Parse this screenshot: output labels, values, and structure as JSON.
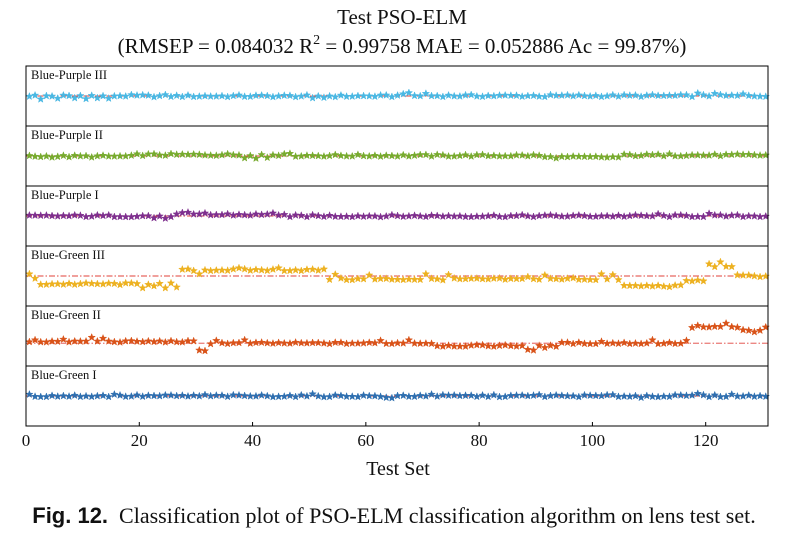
{
  "chart_data": {
    "type": "scatter",
    "title": "Test PSO-ELM",
    "subtitle_prefix": "(RMSEP = 0.084032 R",
    "subtitle_sup": "2",
    "subtitle_suffix": " = 0.99758 MAE = 0.052886 Ac = 99.87%)",
    "xlabel": "Test Set",
    "xlim": [
      0,
      131
    ],
    "x_ticks": [
      "0",
      "20",
      "40",
      "60",
      "80",
      "100",
      "120"
    ],
    "x_tick_values": [
      0,
      20,
      40,
      60,
      80,
      100,
      120
    ],
    "n_samples": 131,
    "panels": [
      {
        "name": "Blue-Purple III",
        "color": "#4ab8e3",
        "class_value": 1,
        "segments": [
          [
            0,
            21,
            0.005
          ],
          [
            21,
            65,
            -0.003
          ],
          [
            65,
            131,
            0.005
          ]
        ],
        "outliers": [
          [
            2,
            -0.08
          ],
          [
            5,
            -0.06
          ],
          [
            8,
            -0.05
          ],
          [
            10,
            -0.07
          ],
          [
            12,
            -0.05
          ],
          [
            14,
            -0.06
          ],
          [
            24,
            0.03
          ],
          [
            50,
            -0.05
          ],
          [
            52,
            -0.04
          ],
          [
            66,
            0.05
          ],
          [
            67,
            0.08
          ],
          [
            70,
            0.06
          ],
          [
            91,
            -0.02
          ],
          [
            118,
            0.07
          ],
          [
            121,
            0.06
          ],
          [
            126,
            0.05
          ]
        ]
      },
      {
        "name": "Blue-Purple II",
        "color": "#77ab2e",
        "class_value": 2,
        "segments": [
          [
            0,
            19,
            -0.01
          ],
          [
            19,
            46,
            0.03
          ],
          [
            46,
            91,
            0.01
          ],
          [
            91,
            105,
            -0.03
          ],
          [
            105,
            131,
            0.02
          ]
        ],
        "outliers": [
          [
            38,
            -0.05
          ],
          [
            40,
            -0.06
          ],
          [
            42,
            -0.04
          ],
          [
            45,
            0.05
          ],
          [
            46,
            0.06
          ],
          [
            113,
            0.05
          ],
          [
            121,
            0.04
          ]
        ]
      },
      {
        "name": "Blue-Purple I",
        "color": "#7e2f8e",
        "class_value": 3,
        "segments": [
          [
            0,
            26,
            0.0
          ],
          [
            26,
            47,
            0.03
          ],
          [
            47,
            131,
            0.0
          ]
        ],
        "outliers": [
          [
            22,
            -0.05
          ],
          [
            24,
            -0.06
          ],
          [
            27,
            0.08
          ],
          [
            28,
            0.09
          ],
          [
            31,
            0.07
          ],
          [
            35,
            0.05
          ],
          [
            43,
            0.07
          ],
          [
            46,
            -0.02
          ],
          [
            111,
            0.05
          ],
          [
            120,
            0.06
          ]
        ]
      },
      {
        "name": "Blue-Green III",
        "color": "#edb120",
        "class_value": 4,
        "segments": [
          [
            0,
            27,
            -0.2
          ],
          [
            27,
            53,
            0.15
          ],
          [
            53,
            105,
            -0.08
          ],
          [
            105,
            116,
            -0.25
          ],
          [
            116,
            120,
            -0.12
          ],
          [
            120,
            125,
            0.25
          ],
          [
            125,
            131,
            0.0
          ]
        ],
        "outliers": [
          [
            0,
            0.05
          ],
          [
            1,
            -0.06
          ],
          [
            20,
            -0.3
          ],
          [
            22,
            -0.25
          ],
          [
            24,
            -0.3
          ],
          [
            26,
            -0.28
          ],
          [
            30,
            0.05
          ],
          [
            37,
            0.2
          ],
          [
            44,
            0.2
          ],
          [
            54,
            0.04
          ],
          [
            60,
            0.02
          ],
          [
            70,
            0.05
          ],
          [
            74,
            0.03
          ],
          [
            88,
            -0.02
          ],
          [
            91,
            0.02
          ],
          [
            96,
            -0.05
          ],
          [
            101,
            0.05
          ],
          [
            103,
            0.03
          ],
          [
            120,
            0.3
          ],
          [
            122,
            0.35
          ]
        ]
      },
      {
        "name": "Blue-Green II",
        "color": "#d95319",
        "class_value": 5,
        "segments": [
          [
            0,
            30,
            0.05
          ],
          [
            30,
            72,
            0.0
          ],
          [
            72,
            94,
            -0.08
          ],
          [
            94,
            117,
            0.0
          ],
          [
            117,
            126,
            0.5
          ],
          [
            126,
            131,
            0.4
          ]
        ],
        "outliers": [
          [
            1,
            0.1
          ],
          [
            6,
            0.12
          ],
          [
            11,
            0.18
          ],
          [
            13,
            0.15
          ],
          [
            30,
            -0.22
          ],
          [
            31,
            -0.24
          ],
          [
            33,
            0.08
          ],
          [
            38,
            0.1
          ],
          [
            62,
            0.08
          ],
          [
            67,
            0.1
          ],
          [
            88,
            -0.2
          ],
          [
            89,
            -0.22
          ],
          [
            91,
            -0.14
          ],
          [
            101,
            0.05
          ],
          [
            110,
            0.1
          ],
          [
            116,
            0.08
          ],
          [
            118,
            0.55
          ],
          [
            123,
            0.62
          ],
          [
            128,
            0.35
          ],
          [
            130,
            0.5
          ]
        ]
      },
      {
        "name": "Blue-Green I",
        "color": "#2e6fb0",
        "class_value": 6,
        "segments": [
          [
            0,
            131,
            0.0
          ]
        ],
        "outliers": [
          [
            0,
            0.04
          ],
          [
            15,
            0.04
          ],
          [
            31,
            0.03
          ],
          [
            50,
            0.05
          ],
          [
            63,
            -0.04
          ],
          [
            64,
            -0.05
          ],
          [
            71,
            0.04
          ],
          [
            90,
            0.03
          ],
          [
            103,
            0.03
          ],
          [
            108,
            -0.04
          ],
          [
            118,
            0.06
          ],
          [
            124,
            0.04
          ]
        ]
      }
    ],
    "reference_line": {
      "style": "dash-dot",
      "color": "#e0413a",
      "at_class_value": true
    },
    "panel_ylim": [
      -0.5,
      0.5
    ],
    "panel_ylim_override": {
      "Blue-Green II": [
        -0.4,
        0.85
      ]
    }
  },
  "caption": {
    "label": "Fig. 12.",
    "text": "Classification plot of PSO-ELM classification algorithm on lens test set."
  }
}
